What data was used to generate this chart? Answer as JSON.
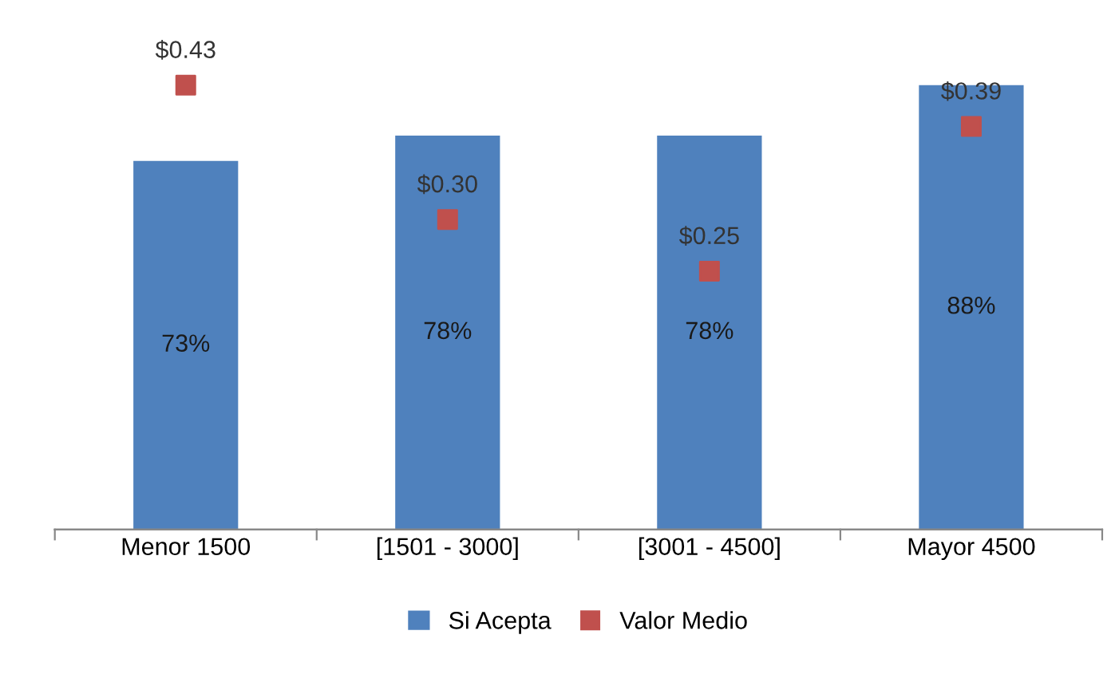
{
  "chart_data": {
    "type": "bar",
    "categories": [
      "Menor 1500",
      "[1501 - 3000]",
      "[3001 - 4500]",
      "Mayor 4500"
    ],
    "series": [
      {
        "name": "Si Acepta",
        "color": "#4f81bd",
        "values": [
          73,
          78,
          78,
          88
        ],
        "value_labels": [
          "73%",
          "78%",
          "78%",
          "88%"
        ]
      },
      {
        "name": "Valor Medio",
        "type": "scatter",
        "axis": "y2",
        "marker": "square",
        "color": "#c0504d",
        "values": [
          0.43,
          0.3,
          0.25,
          0.39
        ],
        "value_labels": [
          "$0.43",
          "$0.30",
          "$0.25",
          "$0.39"
        ]
      }
    ],
    "tick_labels": "x",
    "legend": "bottom",
    "grid": false
  }
}
